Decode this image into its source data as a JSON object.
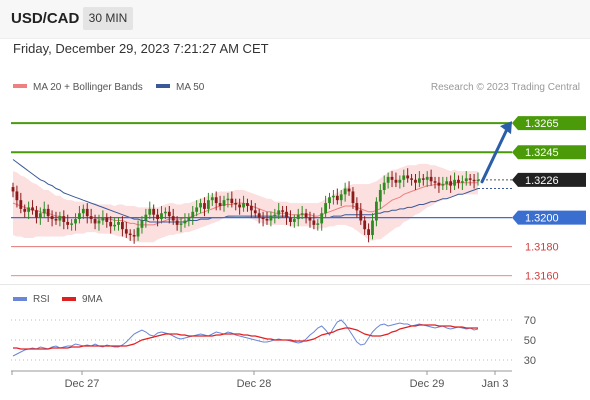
{
  "header": {
    "symbol": "USD/CAD",
    "interval": "30 MIN"
  },
  "datetime": "Friday, December 29, 2023 7:21:27 AM CET",
  "legend": {
    "items": [
      {
        "label": "MA 20 + Bollinger Bands",
        "color": "#f08080"
      },
      {
        "label": "MA 50",
        "color": "#3b5998"
      }
    ],
    "source": "Research © 2023 Trading Central"
  },
  "osc_legend": {
    "items": [
      {
        "label": "RSI",
        "color": "#6a86d8"
      },
      {
        "label": "9MA",
        "color": "#e02020"
      }
    ]
  },
  "colors": {
    "up_candle": "#2e8b22",
    "down_candle": "#8b1a1a",
    "resistance": "#4a9a0a",
    "support": "#3a6fd0",
    "minor_support": "#e06060",
    "bollinger": "#fbd4d4",
    "current_price": "#222222",
    "arrow": "#2a5ea8"
  },
  "chart_data": [
    {
      "type": "candlestick",
      "title": "USD/CAD",
      "ylim": [
        1.3155,
        1.3305
      ],
      "x_ticks": [
        "Dec 27",
        "Dec 28",
        "Dec 29",
        "Jan 3"
      ],
      "current_price": 1.3226,
      "levels": [
        {
          "value": 1.3265,
          "kind": "resistance"
        },
        {
          "value": 1.3245,
          "kind": "resistance"
        },
        {
          "value": 1.32,
          "kind": "support"
        },
        {
          "value": 1.318,
          "kind": "minor"
        },
        {
          "value": 1.316,
          "kind": "minor"
        }
      ],
      "close": [
        1.3218,
        1.3212,
        1.3206,
        1.3204,
        1.3207,
        1.3205,
        1.32,
        1.3203,
        1.3206,
        1.3201,
        1.3199,
        1.3198,
        1.3201,
        1.3197,
        1.3195,
        1.3196,
        1.3199,
        1.3203,
        1.3206,
        1.3201,
        1.3199,
        1.3196,
        1.3198,
        1.32,
        1.3197,
        1.3194,
        1.3195,
        1.3197,
        1.3192,
        1.3189,
        1.3188,
        1.3187,
        1.3193,
        1.3198,
        1.3202,
        1.3206,
        1.3202,
        1.3199,
        1.3203,
        1.3204,
        1.3201,
        1.3198,
        1.3195,
        1.3196,
        1.3198,
        1.32,
        1.3204,
        1.3207,
        1.321,
        1.3206,
        1.3212,
        1.3214,
        1.321,
        1.3208,
        1.3212,
        1.3213,
        1.321,
        1.3209,
        1.3207,
        1.321,
        1.3208,
        1.3205,
        1.3203,
        1.32,
        1.3199,
        1.3198,
        1.3201,
        1.3202,
        1.3205,
        1.3204,
        1.32,
        1.3197,
        1.3199,
        1.3202,
        1.3203,
        1.32,
        1.3198,
        1.3195,
        1.3196,
        1.3203,
        1.321,
        1.3214,
        1.3215,
        1.3212,
        1.3216,
        1.322,
        1.3218,
        1.321,
        1.3205,
        1.3198,
        1.3192,
        1.3188,
        1.3198,
        1.3211,
        1.3219,
        1.3224,
        1.3228,
        1.3226,
        1.3224,
        1.3226,
        1.3229,
        1.3227,
        1.3226,
        1.3224,
        1.3227,
        1.3226,
        1.3228,
        1.3225,
        1.3224,
        1.3222,
        1.3223,
        1.3225,
        1.3222,
        1.3226,
        1.3224,
        1.3225,
        1.3227,
        1.3226,
        1.3225,
        1.3226
      ],
      "ma20": [
        1.321,
        1.3209,
        1.3208,
        1.3207,
        1.3206,
        1.3205,
        1.3205,
        1.3204,
        1.3203,
        1.3203,
        1.3202,
        1.3201,
        1.3201,
        1.32,
        1.32,
        1.32,
        1.32,
        1.32,
        1.32,
        1.32,
        1.32,
        1.32,
        1.3199,
        1.3199,
        1.3199,
        1.3199,
        1.3198,
        1.3198,
        1.3198,
        1.3197,
        1.3196,
        1.3196,
        1.3195,
        1.3195,
        1.3195,
        1.3195,
        1.3195,
        1.3196,
        1.3197,
        1.3198,
        1.3199,
        1.3199,
        1.3199,
        1.3199,
        1.32,
        1.32,
        1.3201,
        1.3202,
        1.3203,
        1.3204,
        1.3205,
        1.3206,
        1.3207,
        1.3208,
        1.3209,
        1.3209,
        1.3209,
        1.321,
        1.321,
        1.321,
        1.3209,
        1.3208,
        1.3207,
        1.3206,
        1.3205,
        1.3204,
        1.3204,
        1.3203,
        1.3203,
        1.3203,
        1.3203,
        1.3202,
        1.3202,
        1.3202,
        1.3202,
        1.3202,
        1.3202,
        1.3201,
        1.3201,
        1.3202,
        1.3203,
        1.3204,
        1.3205,
        1.3206,
        1.3207,
        1.3208,
        1.3208,
        1.3208,
        1.3207,
        1.3206,
        1.3205,
        1.3204,
        1.3204,
        1.3205,
        1.3206,
        1.3208,
        1.321,
        1.3212,
        1.3213,
        1.3214,
        1.3216,
        1.3217,
        1.3218,
        1.3219,
        1.322,
        1.3221,
        1.3222,
        1.3222,
        1.3223,
        1.3223,
        1.3223,
        1.3223,
        1.3223,
        1.3224,
        1.3224,
        1.3224,
        1.3224,
        1.3224,
        1.3224,
        1.3224
      ],
      "bb_width": [
        0.0022,
        0.0022,
        0.0021,
        0.0021,
        0.002,
        0.0019,
        0.0018,
        0.0017,
        0.0016,
        0.0016,
        0.0015,
        0.0014,
        0.0014,
        0.0013,
        0.0012,
        0.0012,
        0.0011,
        0.0011,
        0.0011,
        0.001,
        0.001,
        0.001,
        0.001,
        0.001,
        0.001,
        0.001,
        0.001,
        0.0011,
        0.0011,
        0.0011,
        0.0012,
        0.0012,
        0.0012,
        0.0012,
        0.0012,
        0.0012,
        0.0012,
        0.0011,
        0.0011,
        0.0011,
        0.0011,
        0.0011,
        0.001,
        0.001,
        0.001,
        0.001,
        0.001,
        0.001,
        0.001,
        0.001,
        0.001,
        0.001,
        0.001,
        0.001,
        0.0009,
        0.0009,
        0.0009,
        0.0009,
        0.0009,
        0.0009,
        0.0009,
        0.0009,
        0.0009,
        0.0009,
        0.0009,
        0.0009,
        0.0009,
        0.0008,
        0.0008,
        0.0008,
        0.0008,
        0.0008,
        0.0008,
        0.0008,
        0.0008,
        0.0008,
        0.0008,
        0.0009,
        0.0009,
        0.0009,
        0.001,
        0.001,
        0.0011,
        0.0011,
        0.0012,
        0.0013,
        0.0014,
        0.0015,
        0.0016,
        0.0017,
        0.0018,
        0.0019,
        0.002,
        0.002,
        0.0021,
        0.0021,
        0.0021,
        0.0021,
        0.002,
        0.002,
        0.0019,
        0.0019,
        0.0018,
        0.0017,
        0.0017,
        0.0016,
        0.0015,
        0.0014,
        0.0013,
        0.0012,
        0.0011,
        0.001,
        0.0009,
        0.0009,
        0.0008,
        0.0008,
        0.0008,
        0.0008,
        0.0008,
        0.0008
      ],
      "ma50": [
        1.324,
        1.3238,
        1.3236,
        1.3234,
        1.3232,
        1.323,
        1.3228,
        1.3226,
        1.3225,
        1.3223,
        1.3222,
        1.322,
        1.3219,
        1.3217,
        1.3216,
        1.3215,
        1.3214,
        1.3213,
        1.3212,
        1.3211,
        1.321,
        1.3209,
        1.3208,
        1.3207,
        1.3206,
        1.3205,
        1.3204,
        1.3203,
        1.3202,
        1.3201,
        1.32,
        1.3199,
        1.3199,
        1.3198,
        1.3198,
        1.3197,
        1.3197,
        1.3197,
        1.3197,
        1.3197,
        1.3197,
        1.3197,
        1.3197,
        1.3197,
        1.3197,
        1.3198,
        1.3198,
        1.3198,
        1.3199,
        1.3199,
        1.3199,
        1.32,
        1.32,
        1.32,
        1.32,
        1.3201,
        1.3201,
        1.3201,
        1.3201,
        1.3201,
        1.3201,
        1.3201,
        1.3201,
        1.3201,
        1.3201,
        1.3201,
        1.3201,
        1.3201,
        1.3201,
        1.3201,
        1.3201,
        1.32,
        1.32,
        1.32,
        1.32,
        1.32,
        1.32,
        1.32,
        1.32,
        1.32,
        1.32,
        1.32,
        1.3201,
        1.3201,
        1.3201,
        1.3202,
        1.3202,
        1.3202,
        1.3202,
        1.3202,
        1.3202,
        1.3202,
        1.3202,
        1.3203,
        1.3203,
        1.3204,
        1.3204,
        1.3205,
        1.3205,
        1.3206,
        1.3206,
        1.3207,
        1.3207,
        1.3208,
        1.3209,
        1.3209,
        1.321,
        1.3211,
        1.3211,
        1.3212,
        1.3213,
        1.3213,
        1.3214,
        1.3215,
        1.3216,
        1.3216,
        1.3217,
        1.3218,
        1.3219,
        1.322
      ],
      "projection": {
        "from": 1.3226,
        "to": 1.3265
      }
    },
    {
      "type": "line",
      "title": "RSI",
      "ylim": [
        20,
        80
      ],
      "y_ticks": [
        70,
        50,
        30
      ],
      "series": [
        {
          "name": "RSI",
          "values": [
            34,
            36,
            38,
            40,
            41,
            42,
            41,
            43,
            42,
            41,
            43,
            44,
            42,
            43,
            44,
            44,
            46,
            45,
            44,
            45,
            44,
            46,
            44,
            43,
            45,
            44,
            43,
            43,
            45,
            48,
            52,
            56,
            58,
            60,
            58,
            55,
            54,
            57,
            58,
            57,
            56,
            54,
            52,
            51,
            52,
            53,
            54,
            55,
            56,
            55,
            54,
            56,
            58,
            57,
            56,
            58,
            57,
            55,
            54,
            53,
            52,
            51,
            50,
            49,
            48,
            48,
            49,
            50,
            51,
            50,
            50,
            49,
            48,
            47,
            48,
            51,
            55,
            58,
            62,
            64,
            60,
            55,
            62,
            68,
            70,
            66,
            60,
            54,
            48,
            45,
            46,
            52,
            58,
            62,
            65,
            66,
            64,
            65,
            66,
            67,
            66,
            66,
            64,
            65,
            66,
            65,
            64,
            63,
            62,
            63,
            64,
            62,
            61,
            62,
            63,
            62,
            61,
            62,
            60,
            61
          ]
        },
        {
          "name": "9MA",
          "values": [
            42,
            42,
            41,
            41,
            41,
            41,
            41,
            41,
            41,
            41,
            42,
            42,
            42,
            42,
            42,
            43,
            43,
            43,
            44,
            44,
            44,
            44,
            44,
            44,
            44,
            44,
            44,
            44,
            44,
            44,
            45,
            46,
            48,
            50,
            51,
            52,
            53,
            54,
            55,
            56,
            56,
            56,
            56,
            55,
            55,
            54,
            54,
            54,
            54,
            54,
            54,
            54,
            55,
            55,
            56,
            56,
            56,
            56,
            56,
            55,
            55,
            54,
            54,
            53,
            52,
            51,
            51,
            50,
            50,
            50,
            50,
            50,
            49,
            49,
            49,
            49,
            50,
            51,
            53,
            55,
            56,
            57,
            58,
            60,
            61,
            62,
            62,
            61,
            60,
            58,
            56,
            55,
            54,
            54,
            54,
            55,
            56,
            58,
            59,
            61,
            62,
            63,
            64,
            64,
            65,
            65,
            65,
            65,
            65,
            64,
            64,
            64,
            64,
            63,
            63,
            63,
            62,
            62,
            62,
            62
          ]
        }
      ],
      "x_ticks": [
        "Dec 27",
        "Dec 28",
        "Dec 29",
        "Jan 3"
      ]
    }
  ]
}
